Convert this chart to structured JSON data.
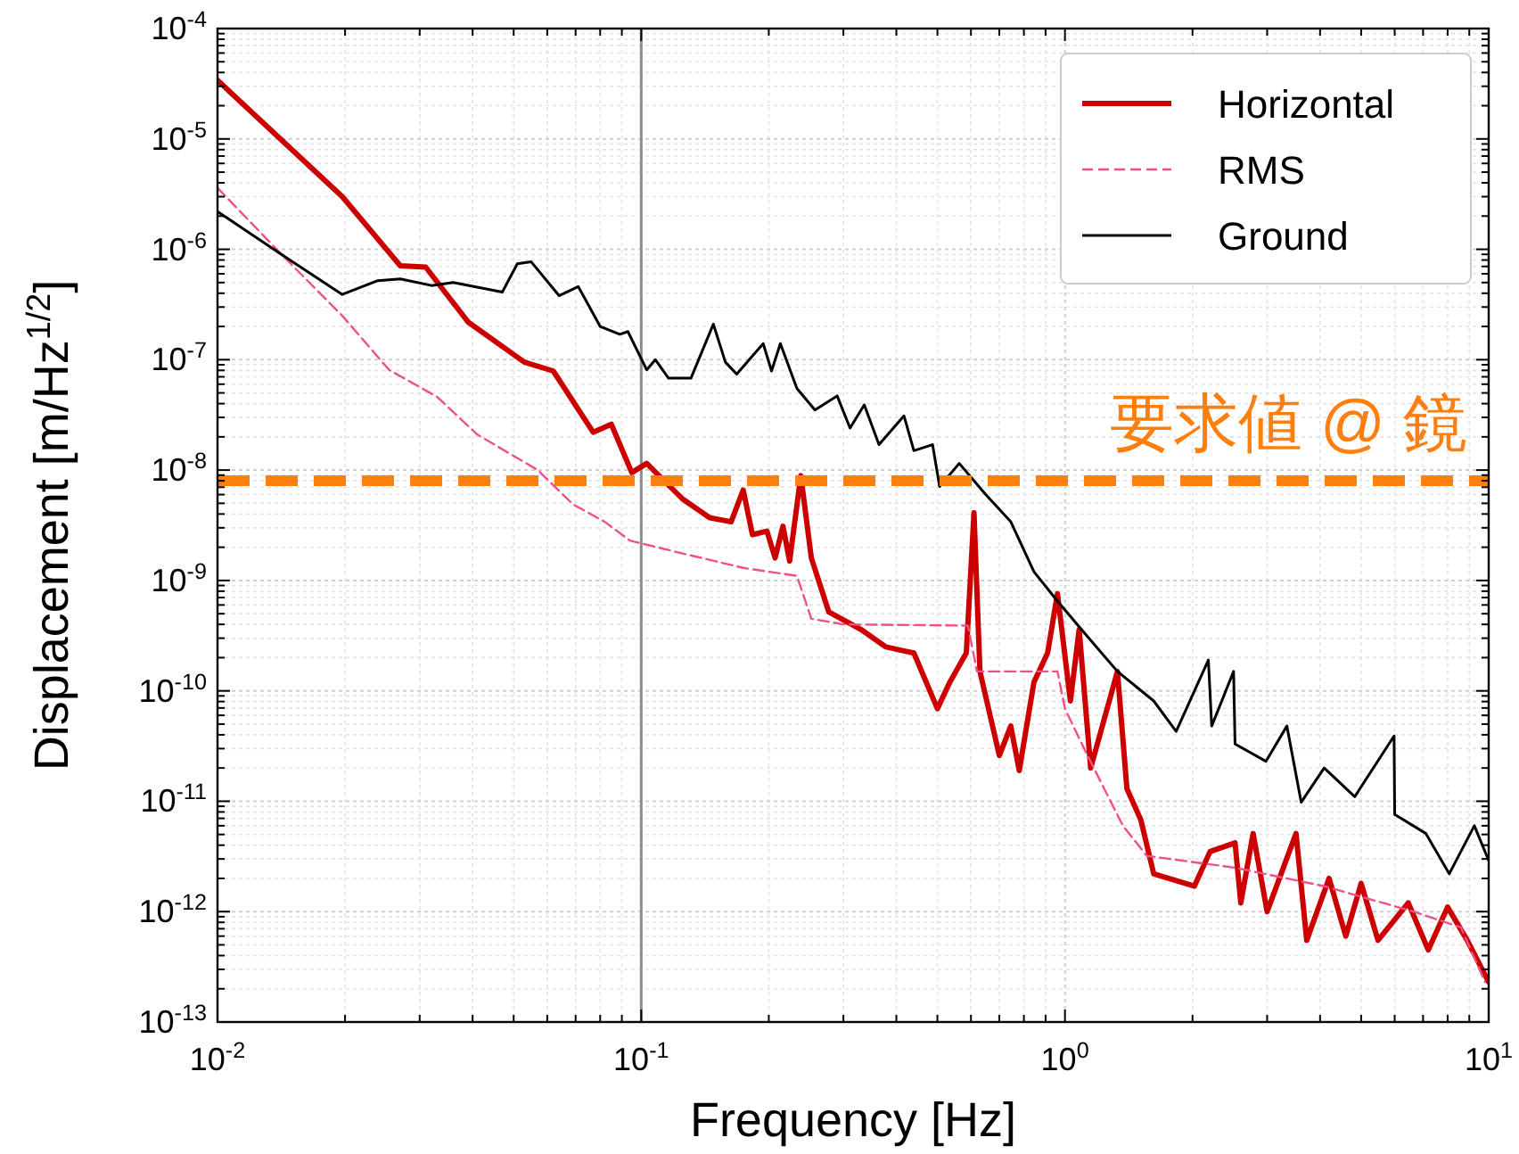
{
  "chart_data": {
    "type": "line",
    "xlabel": "Frequency [Hz]",
    "ylabel": "Displacement [m/Hz$^{1/2}$]",
    "log": "xy",
    "grid": true,
    "legend": "top right",
    "xlim": [
      0.01,
      10
    ],
    "ylim": [
      1e-13,
      0.0001
    ],
    "xticks": [
      {
        "value": 0.01,
        "label": "10$^{-2}$"
      },
      {
        "value": 0.1,
        "label": "10$^{-1}$"
      },
      {
        "value": 1,
        "label": "10$^{0}$"
      },
      {
        "value": 10,
        "label": "10$^{1}$"
      }
    ],
    "yticks": [
      {
        "value": 1e-13,
        "label": "10$^{-13}$"
      },
      {
        "value": 1e-12,
        "label": "10$^{-12}$"
      },
      {
        "value": 1e-11,
        "label": "10$^{-11}$"
      },
      {
        "value": 1e-10,
        "label": "10$^{-10}$"
      },
      {
        "value": 1e-09,
        "label": "10$^{-9}$"
      },
      {
        "value": 1e-08,
        "label": "10$^{-8}$"
      },
      {
        "value": 1e-07,
        "label": "10$^{-7}$"
      },
      {
        "value": 1e-06,
        "label": "10$^{-6}$"
      },
      {
        "value": 1e-05,
        "label": "10$^{-5}$"
      },
      {
        "value": 0.0001,
        "label": "10$^{-4}$"
      }
    ],
    "ref_lines": [
      {
        "axis": "x",
        "value": 0.1,
        "color": "#8c8c8c",
        "line_style": "solid"
      },
      {
        "axis": "y",
        "value": 8e-09,
        "label": "要求値 @ 鏡",
        "color": "#ff7f0e",
        "line_style": "dashed"
      }
    ],
    "series": [
      {
        "name": "Horizontal",
        "color": "#cc0000",
        "line_style": "solid",
        "x": [
          0.01,
          0.0197,
          0.027,
          0.031,
          0.039,
          0.053,
          0.062,
          0.077,
          0.085,
          0.095,
          0.103,
          0.125,
          0.145,
          0.163,
          0.174,
          0.183,
          0.198,
          0.207,
          0.216,
          0.224,
          0.238,
          0.252,
          0.277,
          0.33,
          0.378,
          0.44,
          0.5,
          0.535,
          0.585,
          0.61,
          0.63,
          0.7,
          0.745,
          0.78,
          0.845,
          0.91,
          0.96,
          1.03,
          1.08,
          1.15,
          1.33,
          1.4,
          1.51,
          1.62,
          2.02,
          2.2,
          2.52,
          2.6,
          2.78,
          3.0,
          3.51,
          3.72,
          4.2,
          4.6,
          5.0,
          5.48,
          6.46,
          7.2,
          8.0,
          8.9,
          10
        ],
        "values": [
          3.4e-05,
          3e-06,
          7.1e-07,
          6.9e-07,
          2.2e-07,
          9.5e-08,
          7.9e-08,
          2.2e-08,
          2.6e-08,
          9.5e-09,
          1.15e-08,
          5.5e-09,
          3.7e-09,
          3.4e-09,
          6.6e-09,
          2.6e-09,
          2.8e-09,
          1.6e-09,
          3.1e-09,
          1.5e-09,
          8.9e-09,
          1.6e-09,
          5.2e-10,
          3.6e-10,
          2.5e-10,
          2.2e-10,
          6.9e-11,
          1.2e-10,
          2.2e-10,
          4.1e-09,
          1.5e-10,
          2.6e-11,
          4.8e-11,
          1.9e-11,
          1.2e-10,
          2.2e-10,
          7.6e-10,
          8.1e-11,
          3.6e-10,
          2e-11,
          1.5e-10,
          1.3e-11,
          6.8e-12,
          2.2e-12,
          1.7e-12,
          3.5e-12,
          4.2e-12,
          1.2e-12,
          5.1e-12,
          1e-12,
          5.1e-12,
          5.5e-13,
          2e-12,
          6e-13,
          1.8e-12,
          5.5e-13,
          1.2e-12,
          4.5e-13,
          1.1e-12,
          5.5e-13,
          2.3e-13
        ]
      },
      {
        "name": "RMS",
        "color": "#f0508a",
        "line_style": "dashed",
        "x": [
          0.01,
          0.0142,
          0.0197,
          0.0254,
          0.033,
          0.041,
          0.057,
          0.069,
          0.082,
          0.094,
          0.122,
          0.174,
          0.233,
          0.252,
          0.3,
          0.59,
          0.62,
          0.96,
          1.0,
          1.13,
          1.37,
          1.56,
          2.52,
          4.09,
          6.65,
          8.6,
          9.8
        ],
        "values": [
          3.6e-06,
          8.9e-07,
          2.5e-07,
          8.1e-08,
          4.6e-08,
          2.1e-08,
          1e-08,
          4.9e-09,
          3.4e-09,
          2.3e-09,
          1.8e-09,
          1.3e-09,
          1.1e-09,
          4.5e-10,
          4e-10,
          3.9e-10,
          1.5e-10,
          1.5e-10,
          6.9e-11,
          2.6e-11,
          6e-12,
          3.2e-12,
          2.5e-12,
          1.7e-12,
          1e-12,
          7.2e-13,
          2.3e-13
        ]
      },
      {
        "name": "Ground",
        "color": "#000000",
        "line_style": "solid",
        "x": [
          0.01,
          0.0142,
          0.0197,
          0.0239,
          0.027,
          0.032,
          0.036,
          0.047,
          0.051,
          0.055,
          0.064,
          0.071,
          0.08,
          0.089,
          0.093,
          0.103,
          0.108,
          0.116,
          0.131,
          0.148,
          0.158,
          0.168,
          0.194,
          0.203,
          0.213,
          0.233,
          0.257,
          0.29,
          0.311,
          0.336,
          0.364,
          0.417,
          0.44,
          0.487,
          0.506,
          0.563,
          0.65,
          0.745,
          0.845,
          0.96,
          1.13,
          1.33,
          1.62,
          1.83,
          2.18,
          2.22,
          2.5,
          2.52,
          2.98,
          3.34,
          3.61,
          4.09,
          4.83,
          5.98,
          6.0,
          7.11,
          8.07,
          9.25,
          10
        ],
        "values": [
          2.2e-06,
          8.9e-07,
          3.9e-07,
          5.2e-07,
          5.4e-07,
          4.7e-07,
          5e-07,
          4.1e-07,
          7.4e-07,
          7.7e-07,
          3.8e-07,
          4.6e-07,
          2e-07,
          1.7e-07,
          1.8e-07,
          8.1e-08,
          1e-07,
          6.8e-08,
          6.8e-08,
          2.1e-07,
          9.5e-08,
          7.4e-08,
          1.4e-07,
          7.9e-08,
          1.4e-07,
          5.5e-08,
          3.5e-08,
          4.7e-08,
          2.4e-08,
          3.9e-08,
          1.7e-08,
          3.1e-08,
          1.5e-08,
          1.7e-08,
          7.1e-09,
          1.15e-08,
          6e-09,
          3.4e-09,
          1.2e-09,
          6.5e-10,
          3.1e-10,
          1.5e-10,
          8.1e-11,
          4.3e-11,
          1.9e-10,
          4.8e-11,
          1.5e-10,
          3.3e-11,
          2.3e-11,
          4.8e-11,
          9.8e-12,
          2e-11,
          1.1e-11,
          3.9e-11,
          7.6e-12,
          5.1e-12,
          2.2e-12,
          6e-12,
          2.9e-12
        ]
      }
    ]
  }
}
